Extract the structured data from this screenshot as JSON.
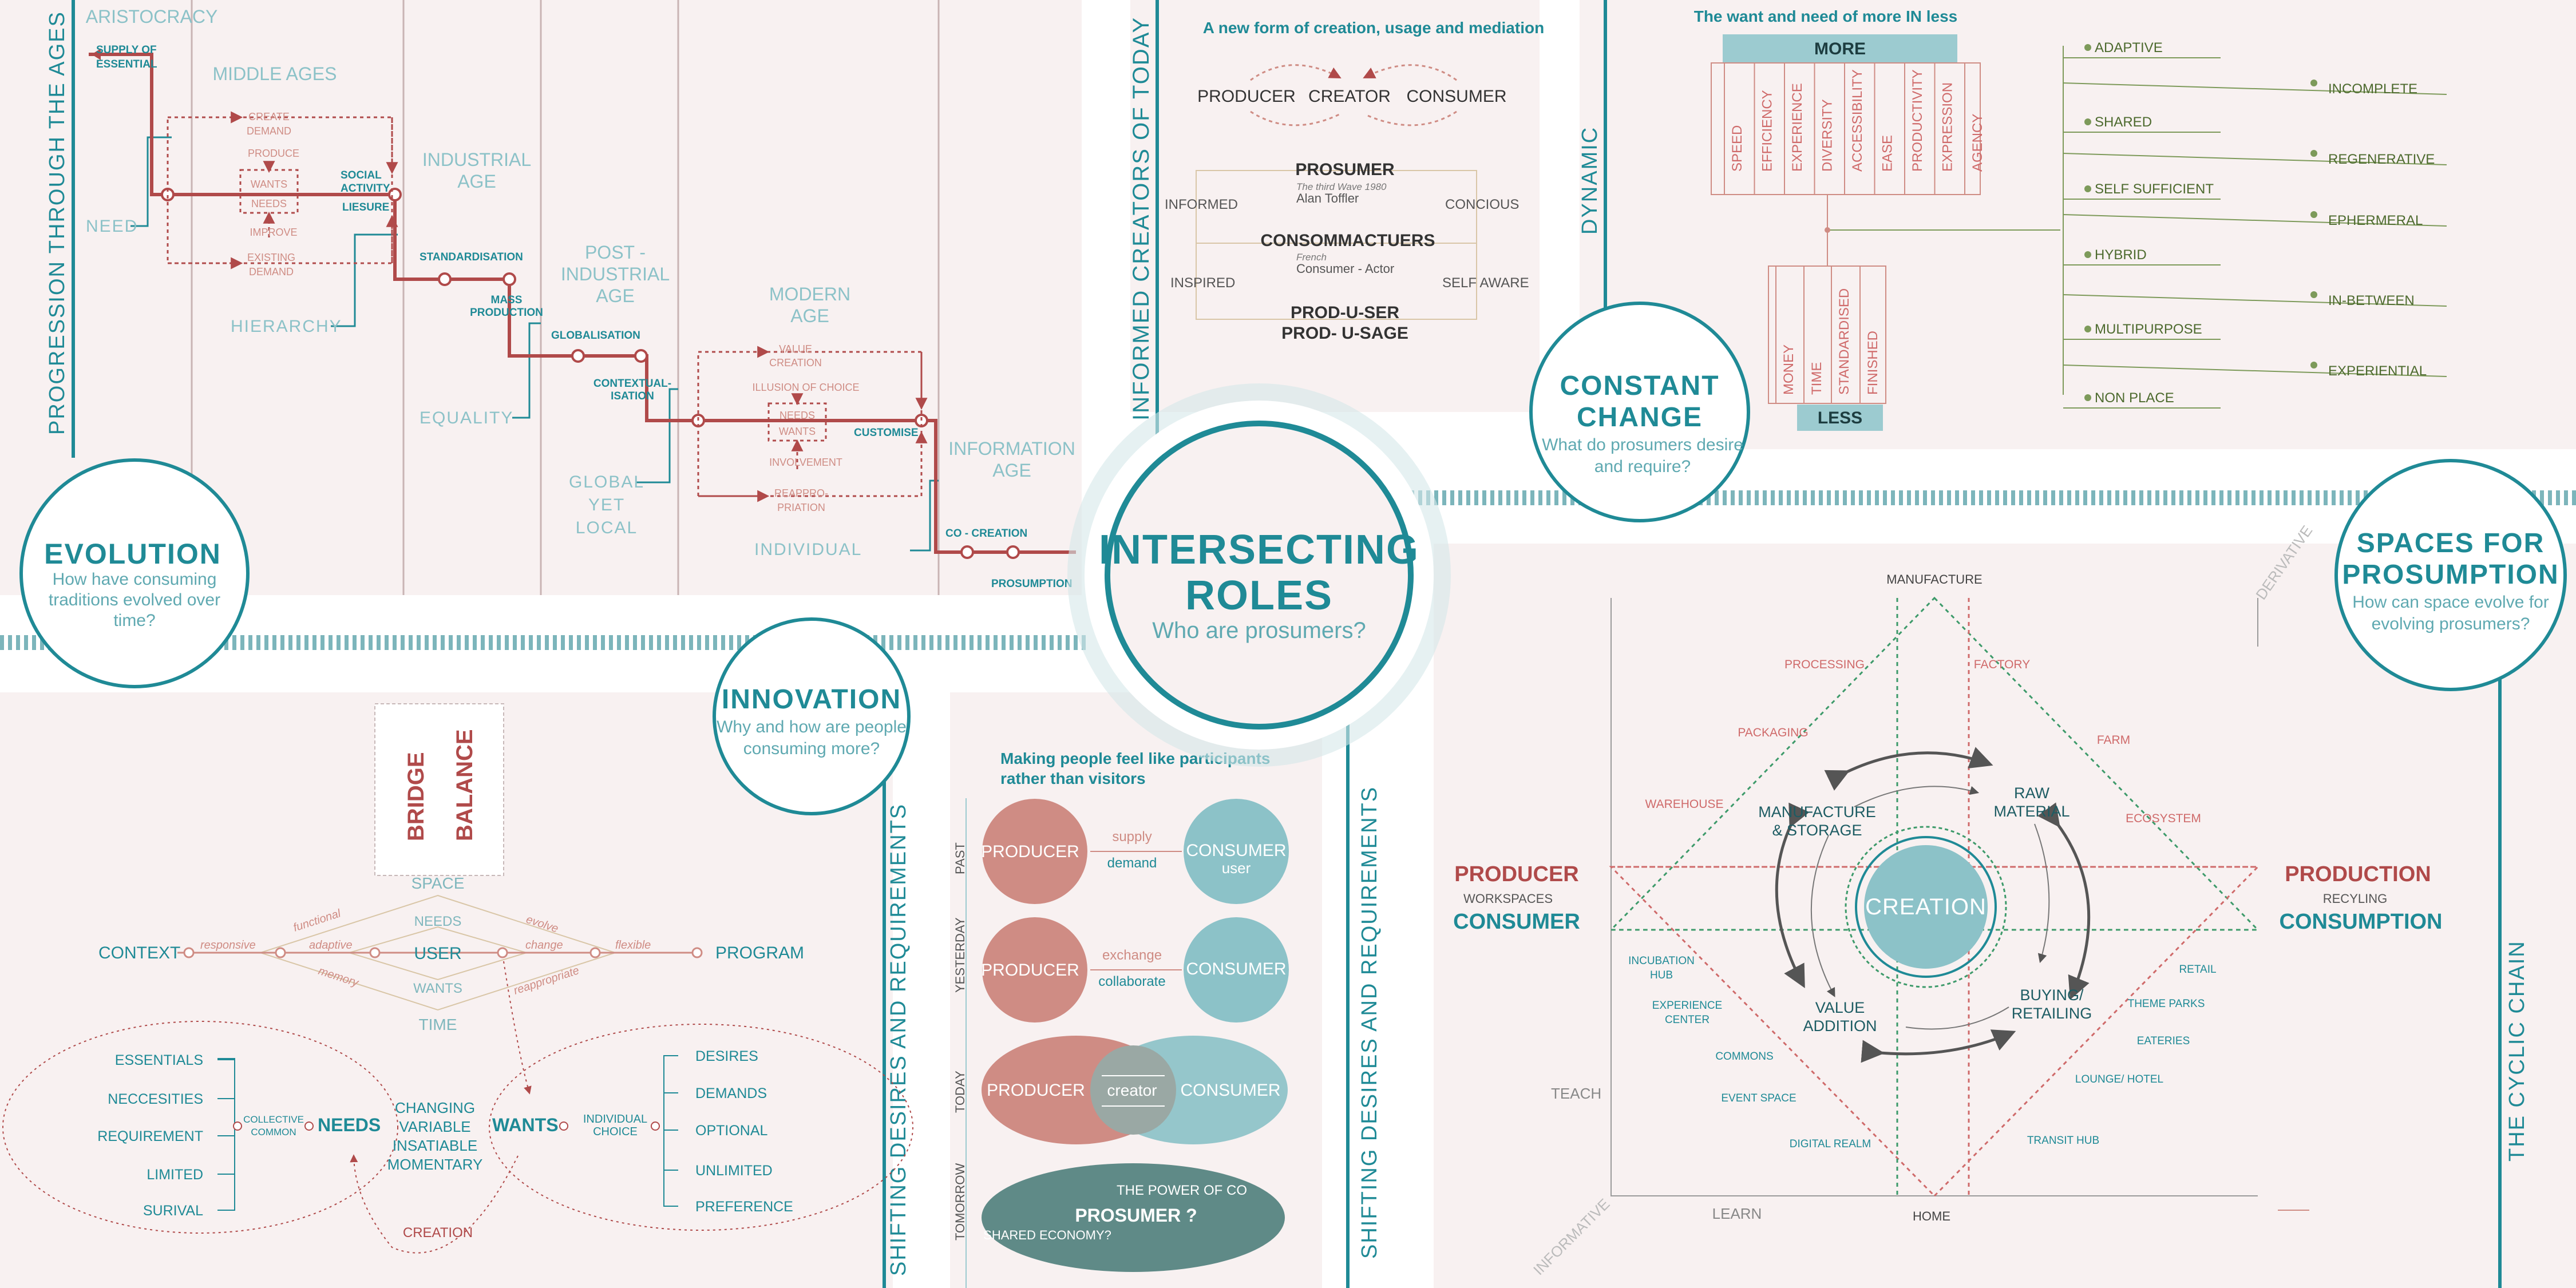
{
  "colors": {
    "teal": "#1f8a96",
    "tealLight": "#8cc2c8",
    "red": "#b04a4a",
    "redLight": "#cf8c84",
    "gray": "#8a8a8a",
    "panel": "#f8f1f1",
    "olive": "#7d9a5a"
  },
  "center": {
    "title1": "INTERSECTING",
    "title2": "ROLES",
    "sub": "Who are prosumers?"
  },
  "evolution": {
    "vertical": "PROGRESSION THROUGH THE AGES",
    "circle": {
      "title": "EVOLUTION",
      "l1": "How have consuming",
      "l2": "traditions evolved over",
      "l3": "time?"
    },
    "ages": {
      "aristocracy": "ARISTOCRACY",
      "middle": "MIDDLE AGES",
      "ind1": "INDUSTRIAL",
      "ind2": "AGE",
      "post1": "POST -",
      "post2": "INDUSTRIAL",
      "post3": "AGE",
      "mod1": "MODERN",
      "mod2": "AGE",
      "info1": "INFORMATION",
      "info2": "AGE"
    },
    "labels": {
      "need": "NEED",
      "hierarchy": "HIERARCHY",
      "equality": "EQUALITY",
      "global1": "GLOBAL",
      "global2": "YET",
      "global3": "LOCAL",
      "individual": "INDIVIDUAL"
    },
    "nodes": {
      "supply1": "SUPPLY OF",
      "supply2": "ESSENTIAL",
      "social1": "SOCIAL",
      "social2": "ACTIVITY",
      "leisure": "LIESURE",
      "standard": "STANDARDISATION",
      "mass1": "MASS",
      "mass2": "PRODUCTION",
      "globalisation": "GLOBALISATION",
      "context1": "CONTEXTUAL-",
      "context2": "ISATION",
      "customise": "CUSTOMISE",
      "cocreation": "CO - CREATION",
      "prosumption": "PROSUMPTION"
    },
    "cycle1": {
      "create1": "CREATE",
      "create2": "DEMAND",
      "produce": "PRODUCE",
      "wants": "WANTS",
      "needs": "NEEDS",
      "improve": "IMPROVE",
      "exist1": "EXISTING",
      "exist2": "DEMAND"
    },
    "cycle2": {
      "value1": "VALUE",
      "value2": "CREATION",
      "illusion": "ILLUSION OF CHOICE",
      "needs": "NEEDS",
      "wants": "WANTS",
      "involve": "INVOLVEMENT",
      "reapp1": "REAPPRO-",
      "reapp2": "PRIATION"
    }
  },
  "informed": {
    "vertical": "INFORMED CREATORS OF TODAY",
    "title": "A new form of creation, usage and mediation",
    "producer": "PRODUCER",
    "creator": "CREATOR",
    "consumer": "CONSUMER",
    "prosumer": "PROSUMER",
    "ref1": "The third Wave 1980",
    "ref2": "Alan Toffler",
    "informed": "INFORMED",
    "concious": "CONCIOUS",
    "consom": "CONSOMMACTUERS",
    "french": "French",
    "actor": "Consumer - Actor",
    "inspired": "INSPIRED",
    "selfaware": "SELF AWARE",
    "produser": "PROD-U-SER",
    "produsage": "PROD- U-SAGE"
  },
  "dynamic": {
    "vertical": "DYNAMIC",
    "title": "The want and need of more IN less",
    "more": "MORE",
    "less": "LESS",
    "moreItems": [
      "SPEED",
      "EFFICIENCY",
      "EXPERIENCE",
      "DIVERSITY",
      "ACCESSIBILITY",
      "EASE",
      "PRODUCTIVITY",
      "EXPRESSION",
      "AGENCY"
    ],
    "lessItems": [
      "MONEY",
      "TIME",
      "STANDARDISED",
      "FINISHED"
    ],
    "col1": [
      "ADAPTIVE",
      "SHARED",
      "SELF SUFFICIENT",
      "HYBRID",
      "MULTIPURPOSE",
      "NON PLACE"
    ],
    "col2": [
      "INCOMPLETE",
      "REGENERATIVE",
      "EPHERMERAL",
      "IN-BETWEEN",
      "EXPERIENTIAL"
    ],
    "circle": {
      "title1": "CONSTANT",
      "title2": "CHANGE",
      "l1": "What do prosumers desire",
      "l2": "and require?"
    }
  },
  "innovation": {
    "vertical": "SHIFTING DESIRES AND REQUIREMENTS",
    "circle": {
      "title": "INNOVATION",
      "l1": "Why and how are people",
      "l2": "consuming more?"
    },
    "bridge": "BRIDGE",
    "balance": "BALANCE",
    "context": "CONTEXT",
    "program": "PROGRAM",
    "user": "USER",
    "space": "SPACE",
    "needsTop": "NEEDS",
    "wantsTop": "WANTS",
    "time": "TIME",
    "responsive": "responsive",
    "functional": "functional",
    "adaptive": "adaptive",
    "memory": "memory",
    "evolve": "evolve",
    "change": "change",
    "flexible": "flexible",
    "reappropriate": "reappropriate",
    "needs": "NEEDS",
    "wants": "WANTS",
    "needsItems": [
      "ESSENTIALS",
      "NECCESITIES",
      "REQUIREMENT",
      "LIMITED",
      "SURIVAL"
    ],
    "collective1": "COLLECTIVE",
    "collective2": "COMMON",
    "wantsItems": [
      "DESIRES",
      "DEMANDS",
      "OPTIONAL",
      "UNLIMITED",
      "PREFERENCE"
    ],
    "individual1": "INDIVIDUAL",
    "individual2": "CHOICE",
    "middle": [
      "CHANGING",
      "VARIABLE",
      "INSATIABLE",
      "MOMENTARY"
    ],
    "creation": "CREATION"
  },
  "participants": {
    "title1": "Making people feel like participants",
    "title2": "rather than visitors",
    "rows": [
      {
        "era": "PAST",
        "left": "PRODUCER",
        "right": "CONSUMER",
        "sub": "user",
        "top": "supply",
        "bottom": "demand"
      },
      {
        "era": "YESTERDAY",
        "left": "PRODUCER",
        "right": "CONSUMER",
        "sub": "",
        "top": "exchange",
        "bottom": "collaborate"
      },
      {
        "era": "TODAY",
        "left": "PRODUCER",
        "right": "CONSUMER",
        "mid": "creator"
      },
      {
        "era": "TOMORROW",
        "power": "THE POWER OF CO",
        "prosumer": "PROSUMER ?",
        "shared": "SHARED ECONOMY?"
      }
    ]
  },
  "spaces": {
    "vertical1": "SHIFTING DESIRES AND REQUIREMENTS",
    "vertical2": "THE CYCLIC CHAIN",
    "circle": {
      "title1": "SPACES FOR",
      "title2": "PROSUMPTION",
      "l1": "How can space evolve for",
      "l2": "evolving prosumers?"
    },
    "manufacture": "MANUFACTURE",
    "derivative": "DERIVATIVE",
    "informative": "INFORMATIVE",
    "teach": "TEACH",
    "learn": "LEARN",
    "home": "HOME",
    "producer": "PRODUCER",
    "workspaces": "WORKSPACES",
    "consumer": "CONSUMER",
    "production": "PRODUCTION",
    "recyling": "RECYLING",
    "consumption": "CONSUMPTION",
    "creation": "CREATION",
    "cycle": {
      "ms1": "MANUFACTURE",
      "ms2": "& STORAGE",
      "raw1": "RAW",
      "raw2": "MATERIAL",
      "va1": "VALUE",
      "va2": "ADDITION",
      "br1": "BUYING/",
      "br2": "RETAILING"
    },
    "redLabels": [
      "PROCESSING",
      "FACTORY",
      "PACKAGING",
      "FARM",
      "WAREHOUSE",
      "ECOSYSTEM"
    ],
    "tealLabels": [
      "INCUBATION",
      "HUB",
      "EXPERIENCE",
      "CENTER",
      "COMMONS",
      "EVENT SPACE",
      "DIGITAL REALM",
      "RETAIL",
      "THEME PARKS",
      "EATERIES",
      "LOUNGE/ HOTEL",
      "TRANSIT HUB"
    ]
  }
}
